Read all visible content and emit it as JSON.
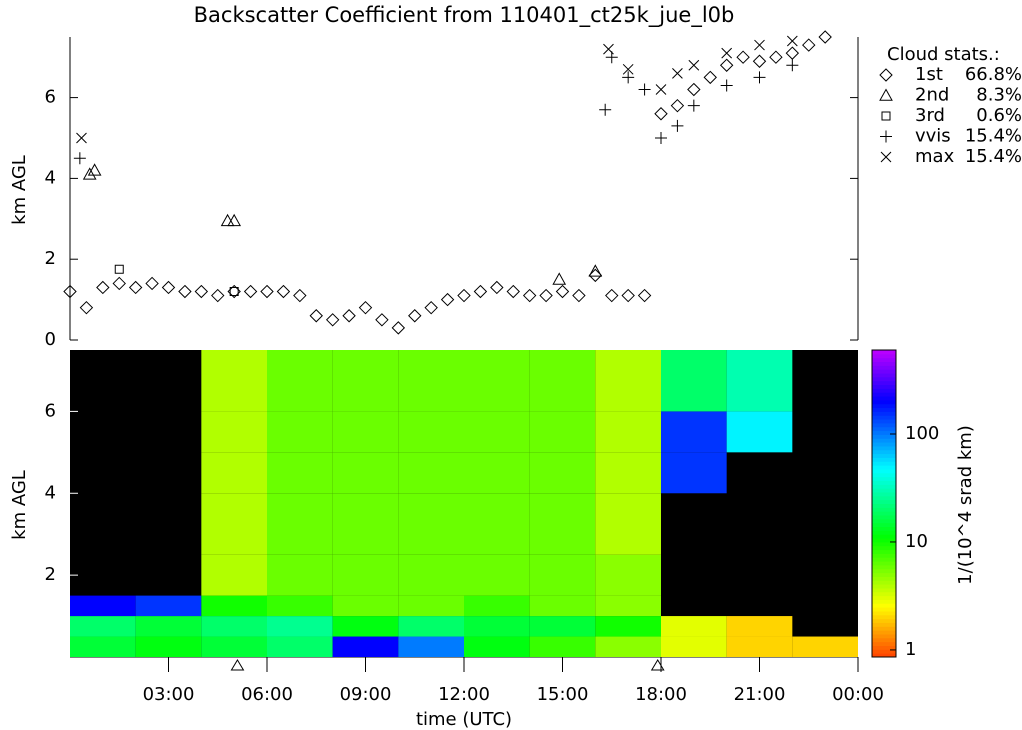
{
  "chart_data": [
    {
      "type": "scatter",
      "title": "Backscatter Coefficient from 110401_ct25k_jue_l0b",
      "y_label": "km AGL",
      "xlim": [
        0,
        24
      ],
      "ylim": [
        0,
        7.5
      ],
      "yticks": [
        0,
        2,
        4,
        6
      ],
      "legend_title": "Cloud stats.:",
      "series": [
        {
          "name": "1st",
          "marker": "diamond",
          "share": {
            "value": 66.8,
            "label": "66.8%"
          },
          "x": [
            0,
            0.5,
            1,
            1.5,
            2,
            2.5,
            3,
            3.5,
            4,
            4.5,
            5,
            5.5,
            6,
            6.5,
            7,
            7.5,
            8,
            8.5,
            9,
            9.5,
            10,
            10.5,
            11,
            11.5,
            12,
            12.5,
            13,
            13.5,
            14,
            14.5,
            15,
            15.5,
            16,
            16.5,
            17,
            17.5,
            18,
            18.5,
            19,
            19.5,
            20,
            20.5,
            21,
            21.5,
            22,
            22.5,
            23
          ],
          "values": [
            1.2,
            0.8,
            1.3,
            1.4,
            1.3,
            1.4,
            1.3,
            1.2,
            1.2,
            1.1,
            1.2,
            1.2,
            1.2,
            1.2,
            1.1,
            0.6,
            0.5,
            0.6,
            0.8,
            0.5,
            0.3,
            0.6,
            0.8,
            1.0,
            1.1,
            1.2,
            1.3,
            1.2,
            1.1,
            1.1,
            1.2,
            1.1,
            1.6,
            1.1,
            1.1,
            1.1,
            5.6,
            5.8,
            6.2,
            6.5,
            6.8,
            7.0,
            6.9,
            7.0,
            7.1,
            7.3,
            7.5
          ]
        },
        {
          "name": "2nd",
          "marker": "triangle",
          "share": {
            "value": 8.3,
            "label": "8.3%"
          },
          "x": [
            0.6,
            0.75,
            4.8,
            5.0,
            14.9,
            16
          ],
          "values": [
            4.1,
            4.2,
            2.95,
            2.95,
            1.5,
            1.7
          ]
        },
        {
          "name": "3rd",
          "marker": "square",
          "share": {
            "value": 0.6,
            "label": "0.6%"
          },
          "x": [
            1.5,
            5.0
          ],
          "values": [
            1.75,
            1.2
          ]
        },
        {
          "name": "vvis",
          "marker": "plus",
          "share": {
            "value": 15.4,
            "label": "15.4%"
          },
          "x": [
            0.3,
            16.3,
            16.5,
            17,
            17.5,
            18,
            18.5,
            19,
            20,
            21,
            22
          ],
          "values": [
            4.5,
            5.7,
            7.0,
            6.5,
            6.2,
            5.0,
            5.3,
            5.8,
            6.3,
            6.5,
            6.8
          ]
        },
        {
          "name": "max",
          "marker": "cross",
          "share": {
            "value": 15.4,
            "label": "15.4%"
          },
          "x": [
            0.35,
            16.4,
            17,
            18,
            18.5,
            19,
            20,
            21,
            22
          ],
          "values": [
            5.0,
            7.2,
            6.7,
            6.2,
            6.6,
            6.8,
            7.1,
            7.3,
            7.4
          ]
        }
      ]
    },
    {
      "type": "heatmap",
      "y_label": "km AGL",
      "x_label": "time (UTC)",
      "colorbar_label": "1/(10^4 srad km)",
      "log_scale": true,
      "zlim": [
        0.86,
        600
      ],
      "zticks": [
        1,
        10,
        100
      ],
      "xlim": [
        0,
        24
      ],
      "ylim": [
        0,
        7.5
      ],
      "yticks": [
        2,
        4,
        6
      ],
      "xticks": [
        {
          "value": 3,
          "label": "03:00"
        },
        {
          "value": 6,
          "label": "06:00"
        },
        {
          "value": 9,
          "label": "09:00"
        },
        {
          "value": 12,
          "label": "12:00"
        },
        {
          "value": 15,
          "label": "15:00"
        },
        {
          "value": 18,
          "label": "18:00"
        },
        {
          "value": 21,
          "label": "21:00"
        },
        {
          "value": 24,
          "label": "00:00"
        }
      ],
      "x_edges": [
        0,
        2,
        4,
        6,
        8,
        10,
        12,
        14,
        16,
        18,
        20,
        22,
        24
      ],
      "y_edges": [
        0,
        0.5,
        1,
        1.5,
        2.5,
        4,
        5,
        6,
        7.5
      ],
      "values": [
        [
          15,
          12,
          15,
          20,
          200,
          100,
          12,
          8,
          5,
          3,
          2,
          2
        ],
        [
          20,
          15,
          20,
          25,
          12,
          20,
          15,
          15,
          10,
          3,
          2,
          null
        ],
        [
          200,
          150,
          10,
          8,
          6,
          6,
          8,
          6,
          5,
          null,
          null,
          null
        ],
        [
          null,
          null,
          4,
          6,
          6,
          6,
          6,
          6,
          5,
          null,
          null,
          null
        ],
        [
          null,
          null,
          4,
          6,
          6,
          6,
          6,
          6,
          4,
          null,
          null,
          null
        ],
        [
          null,
          null,
          4,
          6,
          6,
          6,
          6,
          6,
          4,
          150,
          null,
          null
        ],
        [
          null,
          null,
          4,
          6,
          6,
          6,
          6,
          6,
          4,
          150,
          50,
          null
        ],
        [
          null,
          null,
          4,
          6,
          6,
          6,
          6,
          6,
          4,
          20,
          30,
          null
        ]
      ],
      "markers_x": [
        5.1,
        17.9
      ]
    }
  ]
}
